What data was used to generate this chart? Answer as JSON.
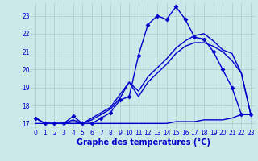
{
  "xlabel": "Graphe des températures (°C)",
  "background_color": "#cce8e8",
  "grid_color": "#aacccc",
  "line_color": "#0000cc",
  "xlim": [
    -0.5,
    23.5
  ],
  "ylim": [
    16.7,
    23.7
  ],
  "yticks": [
    17,
    18,
    19,
    20,
    21,
    22,
    23
  ],
  "xticks": [
    0,
    1,
    2,
    3,
    4,
    5,
    6,
    7,
    8,
    9,
    10,
    11,
    12,
    13,
    14,
    15,
    16,
    17,
    18,
    19,
    20,
    21,
    22,
    23
  ],
  "lines": [
    {
      "x": [
        0,
        1,
        2,
        3,
        4,
        5,
        6,
        7,
        8,
        9,
        10,
        11,
        12,
        13,
        14,
        15,
        16,
        17,
        18,
        19,
        20,
        21,
        22,
        23
      ],
      "y": [
        17.3,
        17.0,
        17.0,
        17.0,
        17.4,
        17.0,
        17.0,
        17.3,
        17.6,
        18.3,
        18.5,
        20.8,
        22.5,
        23.0,
        22.8,
        23.5,
        22.8,
        21.8,
        21.7,
        21.0,
        20.0,
        19.0,
        17.5,
        17.5
      ],
      "marker": "D",
      "markersize": 2.5,
      "linewidth": 1.0
    },
    {
      "x": [
        0,
        1,
        2,
        3,
        4,
        5,
        6,
        7,
        8,
        9,
        10,
        11,
        12,
        13,
        14,
        15,
        16,
        17,
        18,
        19,
        20,
        21,
        22,
        23
      ],
      "y": [
        17.3,
        17.0,
        17.0,
        17.0,
        17.1,
        17.0,
        17.2,
        17.5,
        17.8,
        18.4,
        19.3,
        18.5,
        19.3,
        19.8,
        20.3,
        20.9,
        21.3,
        21.5,
        21.5,
        21.3,
        21.0,
        20.5,
        19.8,
        17.5
      ],
      "marker": null,
      "markersize": 0,
      "linewidth": 1.0
    },
    {
      "x": [
        0,
        1,
        2,
        3,
        4,
        5,
        6,
        7,
        8,
        9,
        10,
        11,
        12,
        13,
        14,
        15,
        16,
        17,
        18,
        19,
        20,
        21,
        22,
        23
      ],
      "y": [
        17.3,
        17.0,
        17.0,
        17.0,
        17.2,
        17.0,
        17.3,
        17.6,
        17.9,
        18.6,
        19.3,
        18.8,
        19.6,
        20.1,
        20.6,
        21.2,
        21.6,
        21.9,
        22.0,
        21.6,
        21.1,
        20.9,
        19.8,
        17.5
      ],
      "marker": null,
      "markersize": 0,
      "linewidth": 1.0
    },
    {
      "x": [
        0,
        1,
        2,
        3,
        4,
        5,
        6,
        7,
        8,
        9,
        10,
        11,
        12,
        13,
        14,
        15,
        16,
        17,
        18,
        19,
        20,
        21,
        22,
        23
      ],
      "y": [
        17.0,
        17.0,
        17.0,
        17.0,
        17.0,
        17.0,
        17.0,
        17.0,
        17.0,
        17.0,
        17.0,
        17.0,
        17.0,
        17.0,
        17.0,
        17.1,
        17.1,
        17.1,
        17.2,
        17.2,
        17.2,
        17.3,
        17.5,
        17.5
      ],
      "marker": null,
      "markersize": 0,
      "linewidth": 1.0
    }
  ],
  "ylabel_fontsize": 6,
  "xlabel_fontsize": 7,
  "tick_fontsize": 5.5
}
